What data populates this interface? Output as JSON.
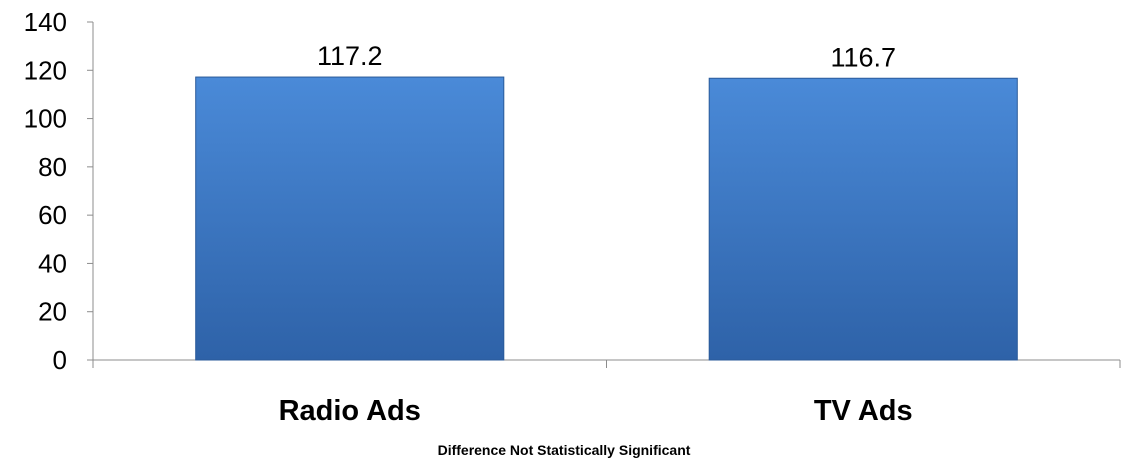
{
  "chart_data": {
    "type": "bar",
    "categories": [
      "Radio Ads",
      "TV Ads"
    ],
    "values": [
      117.2,
      116.7
    ],
    "data_labels": [
      "117.2",
      "116.7"
    ],
    "ylim": [
      0,
      140
    ],
    "yticks": [
      "0",
      "20",
      "40",
      "60",
      "80",
      "100",
      "120",
      "140"
    ],
    "title": "",
    "xlabel": "",
    "ylabel": "",
    "grid": false,
    "legend": "none",
    "bar_color_top": "#4a8ad8",
    "bar_color_bottom": "#2e62a8",
    "bar_edge_color": "#2a5a9a",
    "footnote": "Difference Not Statistically Significant"
  }
}
